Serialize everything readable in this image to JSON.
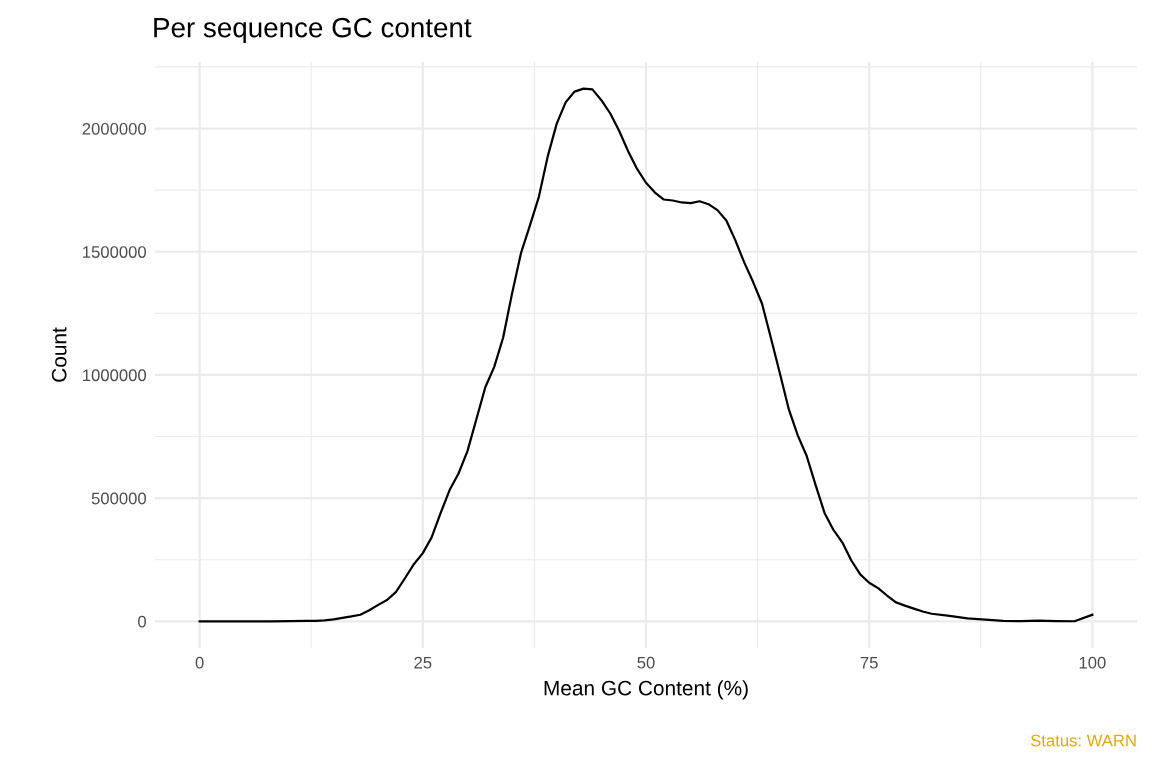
{
  "chart_data": {
    "type": "line",
    "title": "Per sequence GC content",
    "xlabel": "Mean GC Content (%)",
    "ylabel": "Count",
    "annotations": [
      "Status: WARN"
    ],
    "x": [
      0,
      2,
      4,
      6,
      8,
      10,
      12,
      13,
      14,
      15,
      16,
      17,
      18,
      19,
      20,
      21,
      22,
      23,
      24,
      25,
      26,
      27,
      28,
      29,
      30,
      31,
      32,
      33,
      34,
      35,
      36,
      37,
      38,
      39,
      40,
      41,
      42,
      43,
      44,
      45,
      46,
      47,
      48,
      49,
      50,
      51,
      52,
      53,
      54,
      55,
      56,
      57,
      58,
      59,
      60,
      61,
      62,
      63,
      64,
      65,
      66,
      67,
      68,
      69,
      70,
      71,
      72,
      73,
      74,
      75,
      76,
      77,
      78,
      79,
      80,
      81,
      82,
      84,
      86,
      88,
      90,
      92,
      94,
      96,
      98,
      100
    ],
    "series": [
      {
        "color": "#000000",
        "values": [
          0,
          0,
          0,
          0,
          0,
          1000,
          2000,
          2000,
          4000,
          8000,
          14000,
          20000,
          27000,
          45000,
          67000,
          87000,
          120000,
          175000,
          232000,
          277000,
          342000,
          440000,
          533000,
          600000,
          691000,
          820000,
          950000,
          1033000,
          1152000,
          1331000,
          1495000,
          1607000,
          1723000,
          1888000,
          2020000,
          2106000,
          2150000,
          2162000,
          2159000,
          2115000,
          2061000,
          1990000,
          1908000,
          1836000,
          1780000,
          1740000,
          1712000,
          1708000,
          1700000,
          1697000,
          1705000,
          1693000,
          1669000,
          1627000,
          1547000,
          1457000,
          1377000,
          1289000,
          1149000,
          1006000,
          860000,
          755000,
          671000,
          553000,
          440000,
          371000,
          320000,
          247000,
          191000,
          157000,
          135000,
          105000,
          77000,
          64000,
          52000,
          40000,
          31000,
          22000,
          12000,
          7000,
          2000,
          1000,
          3000,
          1000,
          500,
          27000
        ]
      }
    ],
    "xlim": [
      -5,
      105
    ],
    "ylim": [
      -108000,
      2270000
    ],
    "xticks": [
      0,
      25,
      50,
      75,
      100
    ],
    "yticks": [
      0,
      500000,
      1000000,
      1500000,
      2000000
    ],
    "grid": true,
    "line_style": "solid",
    "marker": "none"
  }
}
